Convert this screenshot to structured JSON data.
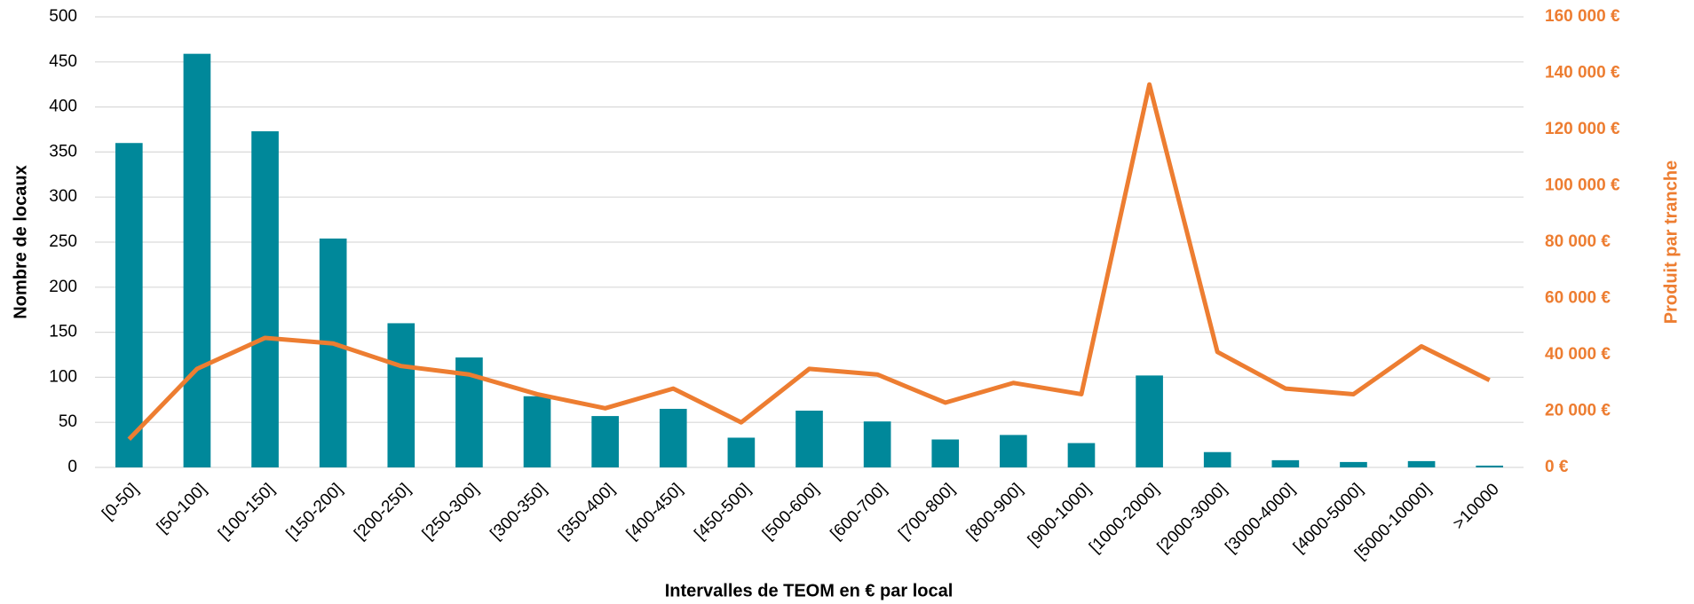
{
  "chart_data": {
    "type": "bar-line",
    "x_label": "Intervalles de TEOM en € par local",
    "y_label": "Nombre de locaux",
    "y2_label": "Produit par tranche",
    "categories": [
      "[0-50]",
      "[50-100]",
      "[100-150]",
      "[150-200]",
      "[200-250]",
      "[250-300]",
      "[300-350]",
      "[350-400]",
      "[400-450]",
      "[450-500]",
      "[500-600]",
      "[600-700]",
      "[700-800]",
      "[800-900]",
      "[900-1000]",
      "[1000-2000]",
      "[2000-3000]",
      "[3000-4000]",
      "[4000-5000]",
      "[5000-10000]",
      ">10000"
    ],
    "series": [
      {
        "type": "bar",
        "color": "#00889a",
        "values": [
          360,
          459,
          373,
          254,
          160,
          122,
          79,
          57,
          65,
          33,
          63,
          51,
          31,
          36,
          27,
          102,
          17,
          8,
          6,
          7,
          2
        ]
      },
      {
        "type": "line",
        "axis": "y2",
        "color": "#ed7d31",
        "values": [
          10000,
          35000,
          46000,
          44000,
          36000,
          33000,
          26000,
          21000,
          28000,
          16000,
          35000,
          33000,
          23000,
          30000,
          26000,
          136000,
          41000,
          28000,
          26000,
          43000,
          31000
        ]
      }
    ],
    "ylim": [
      0,
      500
    ],
    "yticks": [
      0,
      50,
      100,
      150,
      200,
      250,
      300,
      350,
      400,
      450,
      500
    ],
    "y2lim": [
      0,
      160000
    ],
    "y2ticks": [
      {
        "value": 0,
        "label": "0 €"
      },
      {
        "value": 20000,
        "label": "20 000 €"
      },
      {
        "value": 40000,
        "label": "40 000 €"
      },
      {
        "value": 60000,
        "label": "60 000 €"
      },
      {
        "value": 80000,
        "label": "80 000 €"
      },
      {
        "value": 100000,
        "label": "100 000 €"
      },
      {
        "value": 120000,
        "label": "120 000 €"
      },
      {
        "value": 140000,
        "label": "140 000 €"
      },
      {
        "value": 160000,
        "label": "160 000 €"
      }
    ],
    "y2_color": "#ed7d31",
    "grid": true
  }
}
